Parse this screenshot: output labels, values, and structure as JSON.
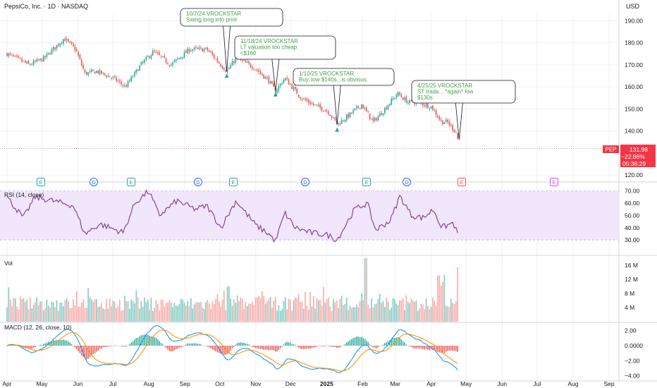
{
  "header": {
    "title": "PepsiCo, Inc. · 1D · NASDAQ",
    "currency": "USD"
  },
  "colors": {
    "up": "#26a69a",
    "down": "#ef5350",
    "rsi_line": "#7e3794",
    "rsi_band": "#f1e6fb",
    "macd_line": "#2196f3",
    "signal_line": "#ff9800",
    "annotation_text": "#43a047",
    "price_tag": "#f23645",
    "grid": "#eef0f3",
    "axis_text": "#131722"
  },
  "price_axis": {
    "ticks": [
      "190.00",
      "180.00",
      "170.00",
      "160.00",
      "150.00",
      "140.00",
      "120.00"
    ]
  },
  "price_tag": {
    "symbol": "PEP",
    "price": "131.98",
    "change": "−22.86%",
    "countdown": "05:36:29"
  },
  "annotations": [
    {
      "line1": "10/7/24 VROCKSTAR",
      "line2": "Swing long into print",
      "line3": ""
    },
    {
      "line1": "11/18/24 VROCKSTAR",
      "line2": "LT valuation too cheap",
      "line3": "<$160"
    },
    {
      "line1": "1/10/25 VROCKSTAR",
      "line2": "Buy. low $140s...is obvious.",
      "line3": ""
    },
    {
      "line1": "4/25/25 VROCKSTAR",
      "line2": "ST trade... *again* low",
      "line3": "$130s"
    }
  ],
  "events": [
    "E",
    "D",
    "E",
    "D",
    "E",
    "D",
    "E",
    "D",
    "E",
    "E"
  ],
  "rsi": {
    "label": "RSI (14, close)",
    "ticks": [
      "70.00",
      "60.00",
      "50.00",
      "40.00",
      "30.00"
    ]
  },
  "volume": {
    "label": "Vol",
    "ticks": [
      "16 M",
      "12 M",
      "8 M",
      "4 M"
    ]
  },
  "macd": {
    "label": "MACD (12, 26, close, 10)",
    "ticks": [
      "2.00",
      "0.0000",
      "−2.00",
      "−4.00"
    ]
  },
  "x_axis": {
    "labels": [
      "Apr",
      "May",
      "Jun",
      "Jul",
      "Aug",
      "Sep",
      "Oct",
      "Nov",
      "Dec",
      "2025",
      "Feb",
      "Mar",
      "Apr",
      "May",
      "Jun",
      "Jul",
      "Aug",
      "Sep"
    ]
  },
  "chart_data": {
    "type": "candlestick",
    "title": "PepsiCo, Inc. · 1D · NASDAQ",
    "price_anchors": [
      [
        "2024-04-01",
        175
      ],
      [
        "2024-04-20",
        170
      ],
      [
        "2024-05-03",
        173
      ],
      [
        "2024-05-20",
        182
      ],
      [
        "2024-05-30",
        177
      ],
      [
        "2024-06-07",
        166
      ],
      [
        "2024-06-17",
        167
      ],
      [
        "2024-07-01",
        164
      ],
      [
        "2024-07-12",
        160
      ],
      [
        "2024-07-25",
        170
      ],
      [
        "2024-08-05",
        176
      ],
      [
        "2024-08-20",
        170
      ],
      [
        "2024-09-05",
        177
      ],
      [
        "2024-09-20",
        177
      ],
      [
        "2024-10-02",
        170
      ],
      [
        "2024-10-07",
        167
      ],
      [
        "2024-10-15",
        173
      ],
      [
        "2024-10-30",
        169
      ],
      [
        "2024-11-12",
        163
      ],
      [
        "2024-11-18",
        158
      ],
      [
        "2024-11-26",
        164
      ],
      [
        "2024-12-10",
        155
      ],
      [
        "2024-12-20",
        152
      ],
      [
        "2025-01-02",
        149
      ],
      [
        "2025-01-10",
        143
      ],
      [
        "2025-01-20",
        147
      ],
      [
        "2025-01-31",
        152
      ],
      [
        "2025-02-10",
        144
      ],
      [
        "2025-02-20",
        150
      ],
      [
        "2025-03-03",
        157
      ],
      [
        "2025-03-12",
        153
      ],
      [
        "2025-03-20",
        153
      ],
      [
        "2025-04-01",
        151
      ],
      [
        "2025-04-10",
        144
      ],
      [
        "2025-04-15",
        144
      ],
      [
        "2025-04-23",
        139
      ],
      [
        "2025-04-25",
        132
      ]
    ],
    "last_close": 131.98,
    "y_range": [
      120,
      193
    ],
    "rsi_anchors": [
      [
        "2024-04-01",
        65
      ],
      [
        "2024-04-15",
        48
      ],
      [
        "2024-04-25",
        65
      ],
      [
        "2024-05-10",
        62
      ],
      [
        "2024-05-28",
        58
      ],
      [
        "2024-06-07",
        35
      ],
      [
        "2024-06-20",
        43
      ],
      [
        "2024-07-10",
        36
      ],
      [
        "2024-07-20",
        60
      ],
      [
        "2024-08-01",
        70
      ],
      [
        "2024-08-10",
        50
      ],
      [
        "2024-08-25",
        62
      ],
      [
        "2024-09-10",
        55
      ],
      [
        "2024-09-20",
        58
      ],
      [
        "2024-10-02",
        40
      ],
      [
        "2024-10-15",
        62
      ],
      [
        "2024-11-01",
        42
      ],
      [
        "2024-11-12",
        35
      ],
      [
        "2024-11-18",
        29
      ],
      [
        "2024-11-26",
        52
      ],
      [
        "2024-12-05",
        40
      ],
      [
        "2024-12-18",
        36
      ],
      [
        "2025-01-02",
        34
      ],
      [
        "2025-01-10",
        30
      ],
      [
        "2025-01-25",
        55
      ],
      [
        "2025-02-05",
        60
      ],
      [
        "2025-02-12",
        38
      ],
      [
        "2025-02-25",
        46
      ],
      [
        "2025-03-05",
        66
      ],
      [
        "2025-03-15",
        50
      ],
      [
        "2025-03-25",
        48
      ],
      [
        "2025-04-03",
        55
      ],
      [
        "2025-04-10",
        40
      ],
      [
        "2025-04-20",
        44
      ],
      [
        "2025-04-25",
        31
      ]
    ]
  }
}
